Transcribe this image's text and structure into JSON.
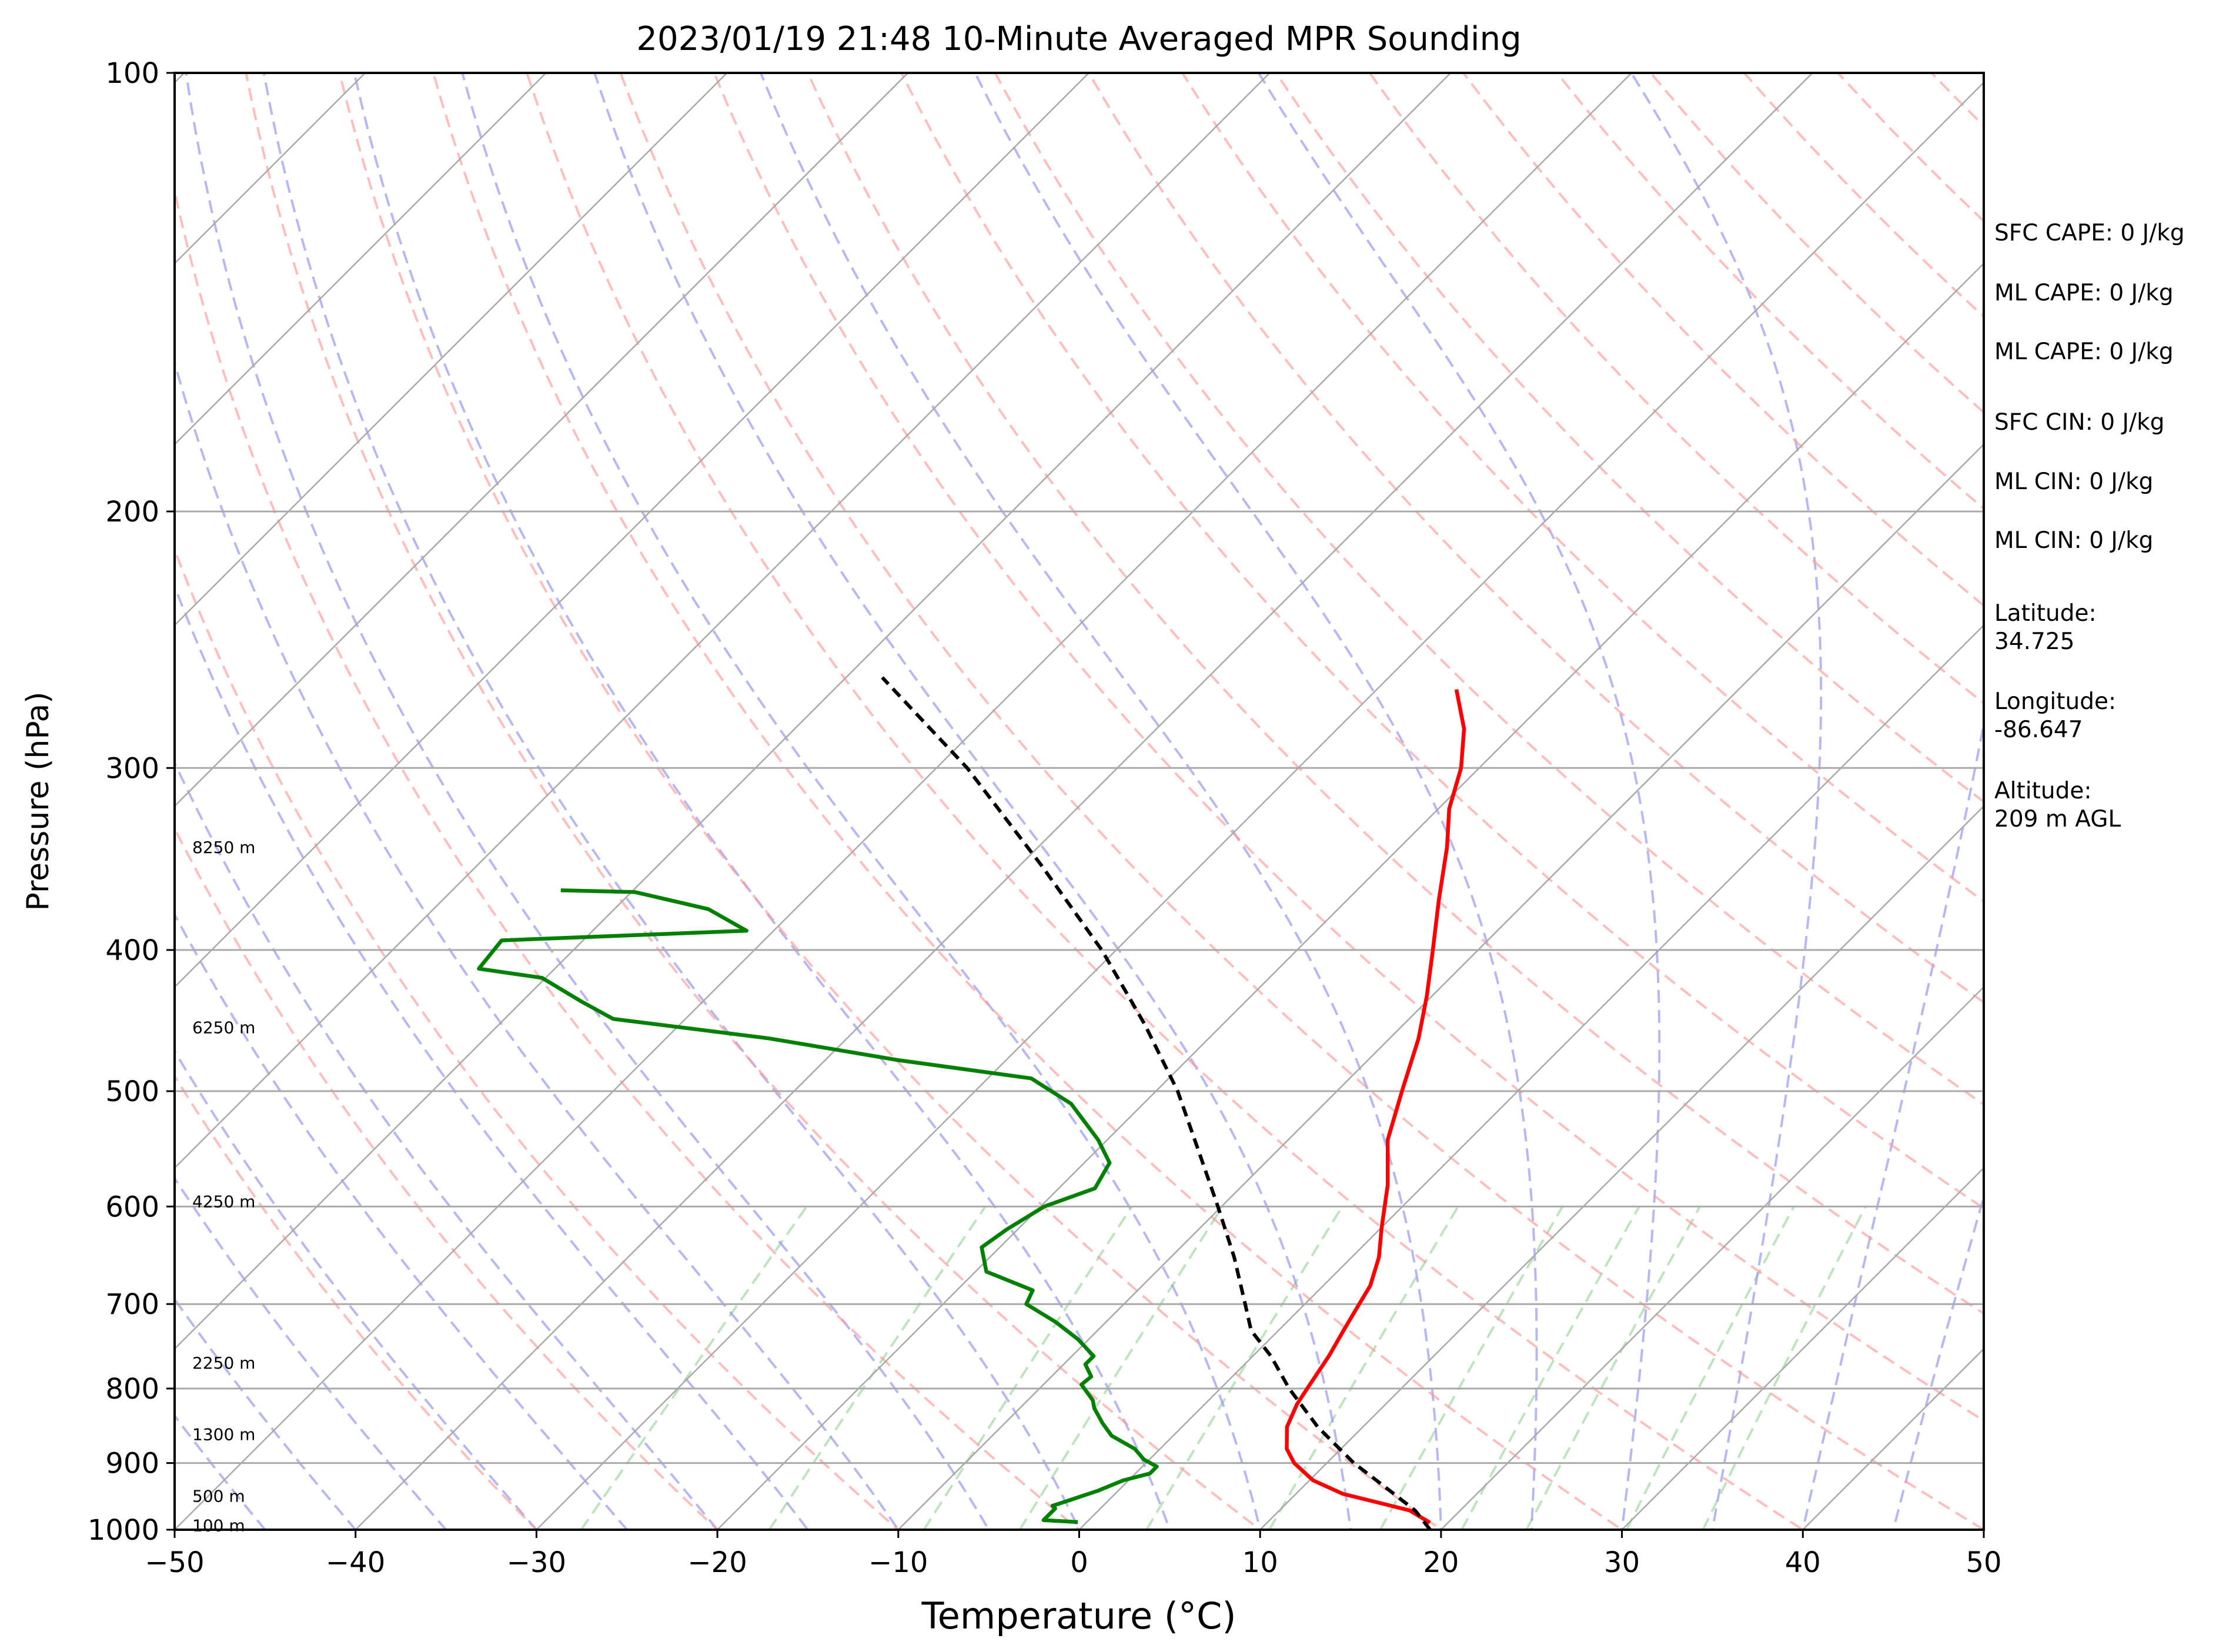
{
  "chart_data": {
    "type": "line",
    "title": "2023/01/19 21:48 10-Minute Averaged MPR Sounding",
    "xlabel": "Temperature (°C)",
    "ylabel": "Pressure (hPa)",
    "xlim": [
      -50,
      50
    ],
    "ylim": [
      1000,
      100
    ],
    "y_scale": "log",
    "skew": true,
    "grid": true,
    "x_ticks": [
      "−50",
      "−40",
      "−30",
      "−20",
      "−10",
      "0",
      "10",
      "20",
      "30",
      "40",
      "50"
    ],
    "y_ticks": [
      "100",
      "200",
      "300",
      "400",
      "500",
      "600",
      "700",
      "800",
      "900",
      "1000"
    ],
    "height_labels": [
      {
        "text": "100 m",
        "p": 993
      },
      {
        "text": "500 m",
        "p": 948
      },
      {
        "text": "1300 m",
        "p": 860
      },
      {
        "text": "2250 m",
        "p": 768
      },
      {
        "text": "4250 m",
        "p": 595
      },
      {
        "text": "6250 m",
        "p": 452
      },
      {
        "text": "8250 m",
        "p": 340
      }
    ],
    "series": [
      {
        "role": "temperature",
        "color": "#ff0000",
        "points": [
          [
            989,
            19.0
          ],
          [
            970,
            17.2
          ],
          [
            960,
            15.4
          ],
          [
            945,
            12.6
          ],
          [
            925,
            10.2
          ],
          [
            900,
            8.2
          ],
          [
            880,
            7.0
          ],
          [
            850,
            5.8
          ],
          [
            820,
            5.1
          ],
          [
            800,
            4.8
          ],
          [
            760,
            4.2
          ],
          [
            730,
            3.6
          ],
          [
            700,
            3.0
          ],
          [
            680,
            2.6
          ],
          [
            650,
            1.5
          ],
          [
            620,
            0.0
          ],
          [
            580,
            -2.0
          ],
          [
            540,
            -4.5
          ],
          [
            500,
            -6.4
          ],
          [
            460,
            -8.4
          ],
          [
            430,
            -10.3
          ],
          [
            400,
            -12.5
          ],
          [
            370,
            -14.9
          ],
          [
            340,
            -17.4
          ],
          [
            320,
            -19.4
          ],
          [
            300,
            -21.0
          ],
          [
            282,
            -23.0
          ],
          [
            265,
            -25.6
          ]
        ]
      },
      {
        "role": "dewpoint",
        "color": "#008000",
        "points": [
          [
            988,
            -0.5
          ],
          [
            985,
            -2.5
          ],
          [
            967,
            -2.5
          ],
          [
            963,
            -2.8
          ],
          [
            955,
            -2.2
          ],
          [
            940,
            -1.1
          ],
          [
            925,
            -0.3
          ],
          [
            915,
            0.8
          ],
          [
            905,
            0.8
          ],
          [
            895,
            -0.3
          ],
          [
            880,
            -1.4
          ],
          [
            862,
            -3.4
          ],
          [
            845,
            -4.6
          ],
          [
            825,
            -5.9
          ],
          [
            815,
            -6.4
          ],
          [
            795,
            -7.9
          ],
          [
            785,
            -7.8
          ],
          [
            770,
            -8.8
          ],
          [
            760,
            -8.8
          ],
          [
            740,
            -10.6
          ],
          [
            720,
            -12.8
          ],
          [
            700,
            -15.4
          ],
          [
            685,
            -15.8
          ],
          [
            665,
            -19.4
          ],
          [
            640,
            -21.0
          ],
          [
            622,
            -20.6
          ],
          [
            600,
            -19.8
          ],
          [
            583,
            -18.0
          ],
          [
            560,
            -18.6
          ],
          [
            540,
            -20.5
          ],
          [
            510,
            -24.0
          ],
          [
            490,
            -27.6
          ],
          [
            476,
            -36.0
          ],
          [
            460,
            -44.3
          ],
          [
            446,
            -54.0
          ],
          [
            434,
            -56.7
          ],
          [
            418,
            -60.2
          ],
          [
            412,
            -64.2
          ],
          [
            394,
            -64.5
          ],
          [
            388,
            -51.5
          ],
          [
            375,
            -54.8
          ],
          [
            365,
            -59.8
          ],
          [
            364,
            -64.0
          ]
        ]
      },
      {
        "role": "parcel",
        "color": "#000000",
        "points": [
          [
            1000,
            19.4
          ],
          [
            970,
            17.5
          ],
          [
            940,
            15.0
          ],
          [
            900,
            11.5
          ],
          [
            850,
            7.5
          ],
          [
            800,
            3.8
          ],
          [
            760,
            1.0
          ],
          [
            730,
            -1.5
          ],
          [
            700,
            -3.3
          ],
          [
            650,
            -6.5
          ],
          [
            600,
            -10.2
          ],
          [
            550,
            -14.3
          ],
          [
            500,
            -18.8
          ],
          [
            450,
            -24.3
          ],
          [
            400,
            -30.8
          ],
          [
            350,
            -38.8
          ],
          [
            300,
            -48.3
          ],
          [
            260,
            -58.0
          ]
        ]
      }
    ]
  },
  "info": {
    "sfc_cape": "SFC CAPE: 0 J/kg",
    "ml_cape_1": "ML CAPE: 0 J/kg",
    "ml_cape_2": "ML CAPE: 0 J/kg",
    "sfc_cin": "SFC CIN: 0 J/kg",
    "ml_cin_1": "ML CIN: 0 J/kg",
    "ml_cin_2": "ML CIN: 0 J/kg",
    "latitude_label": "Latitude:",
    "latitude_value": "34.725",
    "longitude_label": "Longitude:",
    "longitude_value": "-86.647",
    "altitude_label": "Altitude:",
    "altitude_value": "209 m AGL"
  },
  "colors": {
    "temperature": "#ff0000",
    "dewpoint": "#008000",
    "parcel": "#000000",
    "dry_adiabat": "#ff9999",
    "moist_adiabat": "#9999ee",
    "mixing_ratio": "#88cc88",
    "isotherm": "#a9a9a9"
  }
}
